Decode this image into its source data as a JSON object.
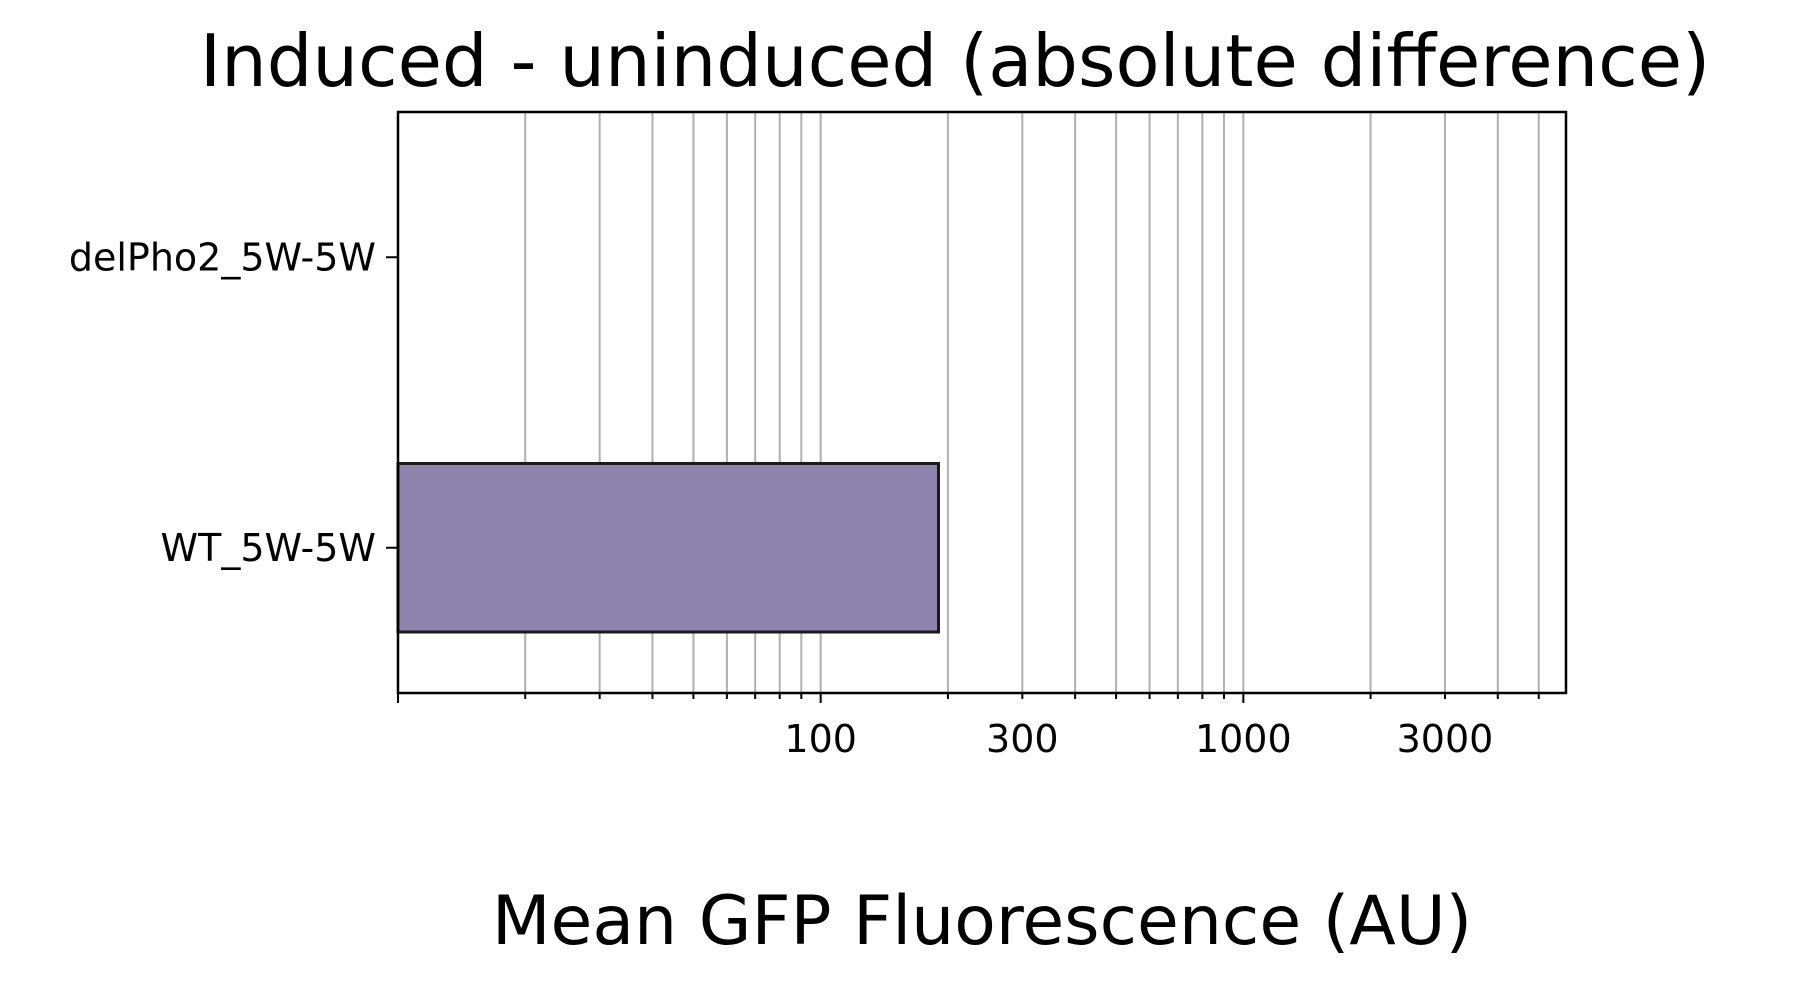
{
  "chart_data": {
    "type": "bar",
    "orientation": "horizontal",
    "title": "Induced - uninduced (absolute difference)",
    "xlabel": "Mean GFP Fluorescence (AU)",
    "ylabel": "",
    "x_scale": "log",
    "xlim": [
      10,
      5800
    ],
    "x_tick_labels": [
      "100",
      "300",
      "1000",
      "3000"
    ],
    "x_tick_values": [
      100,
      300,
      1000,
      3000
    ],
    "grid": "x-major-and-minor",
    "categories": [
      "delPho2_5W-5W",
      "WT_5W-5W"
    ],
    "values": [
      null,
      190
    ],
    "bar_color": "#8e85ae",
    "edge_color": "#1a1a1a"
  }
}
